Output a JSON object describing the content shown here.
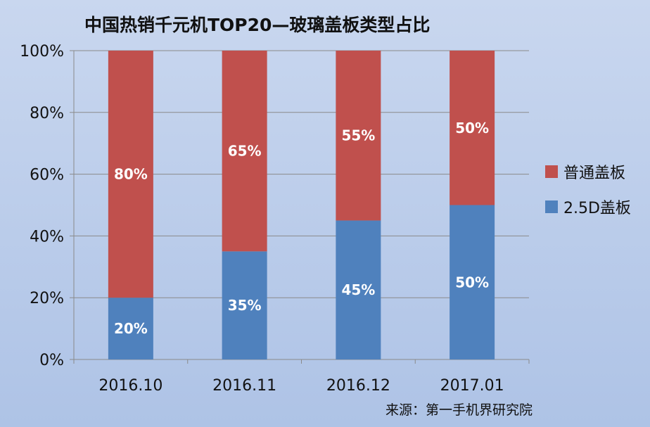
{
  "chart_data": {
    "type": "bar",
    "stacked": true,
    "title": "中国热销千元机TOP20—玻璃盖板类型占比",
    "categories": [
      "2016.10",
      "2016.11",
      "2016.12",
      "2017.01"
    ],
    "series": [
      {
        "name": "2.5D盖板",
        "color": "#4f81bd",
        "values": [
          20,
          35,
          45,
          50
        ],
        "labels": [
          "20%",
          "35%",
          "45%",
          "50%"
        ]
      },
      {
        "name": "普通盖板",
        "color": "#c0504d",
        "values": [
          80,
          65,
          55,
          50
        ],
        "labels": [
          "80%",
          "65%",
          "55%",
          "50%"
        ]
      }
    ],
    "ylim": [
      0,
      100
    ],
    "yticks": [
      "0%",
      "20%",
      "40%",
      "60%",
      "80%",
      "100%"
    ],
    "ytick_values": [
      0,
      20,
      40,
      60,
      80,
      100
    ],
    "grid": true,
    "legend_position": "right"
  },
  "source": "来源：第一手机界研究院"
}
